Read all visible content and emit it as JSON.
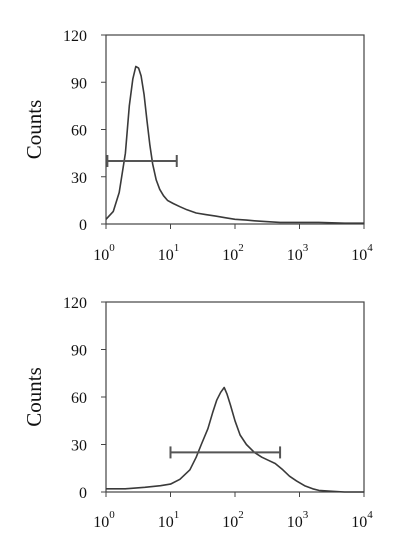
{
  "chart_data": [
    {
      "type": "line",
      "title": "",
      "xlabel": "",
      "ylabel": "Counts",
      "x_scale": "log",
      "xlim": [
        1,
        10000
      ],
      "ylim": [
        0,
        120
      ],
      "x_ticks": [
        {
          "base": "10",
          "exp": "0"
        },
        {
          "base": "10",
          "exp": "1"
        },
        {
          "base": "10",
          "exp": "2"
        },
        {
          "base": "10",
          "exp": "3"
        },
        {
          "base": "10",
          "exp": "4"
        }
      ],
      "y_ticks": [
        "0",
        "30",
        "60",
        "90",
        "120"
      ],
      "grid": false,
      "colors": {
        "line": "#3a3a3a",
        "marker": "#555555",
        "frame": "#444444"
      },
      "series": [
        {
          "x": [
            1,
            1.3,
            1.6,
            2.0,
            2.3,
            2.6,
            2.9,
            3.2,
            3.5,
            3.9,
            4.3,
            4.8,
            5.3,
            6.0,
            6.8,
            7.8,
            9,
            11,
            14,
            18,
            25,
            35,
            50,
            70,
            100,
            150,
            200,
            300,
            500,
            1000,
            2000,
            5000,
            10000
          ],
          "y": [
            3,
            8,
            20,
            45,
            75,
            92,
            100,
            99,
            94,
            82,
            66,
            50,
            38,
            28,
            22,
            18,
            15,
            13,
            11,
            9,
            7,
            6,
            5,
            4,
            3,
            2.5,
            2,
            1.5,
            1,
            1,
            1,
            0.5,
            0.5
          ]
        }
      ],
      "marker": {
        "x_start": 1.05,
        "x_end": 12.5,
        "y": 40
      }
    },
    {
      "type": "line",
      "title": "",
      "xlabel": "",
      "ylabel": "Counts",
      "x_scale": "log",
      "xlim": [
        1,
        10000
      ],
      "ylim": [
        0,
        120
      ],
      "x_ticks": [
        {
          "base": "10",
          "exp": "0"
        },
        {
          "base": "10",
          "exp": "1"
        },
        {
          "base": "10",
          "exp": "2"
        },
        {
          "base": "10",
          "exp": "3"
        },
        {
          "base": "10",
          "exp": "4"
        }
      ],
      "y_ticks": [
        "0",
        "30",
        "60",
        "90",
        "120"
      ],
      "grid": false,
      "colors": {
        "line": "#3a3a3a",
        "marker": "#555555",
        "frame": "#444444"
      },
      "series": [
        {
          "x": [
            1,
            2,
            4,
            7,
            10,
            14,
            20,
            25,
            30,
            38,
            45,
            52,
            60,
            68,
            75,
            85,
            100,
            120,
            150,
            200,
            260,
            330,
            420,
            550,
            700,
            900,
            1200,
            1600,
            2000,
            3000,
            5000,
            10000
          ],
          "y": [
            2,
            2,
            3,
            4,
            5,
            8,
            14,
            22,
            30,
            40,
            50,
            58,
            63,
            66,
            62,
            55,
            45,
            36,
            30,
            25,
            22,
            20,
            18,
            14,
            10,
            7,
            4,
            2,
            1,
            0.5,
            0,
            0
          ]
        }
      ],
      "marker": {
        "x_start": 10,
        "x_end": 500,
        "y": 25
      }
    }
  ]
}
